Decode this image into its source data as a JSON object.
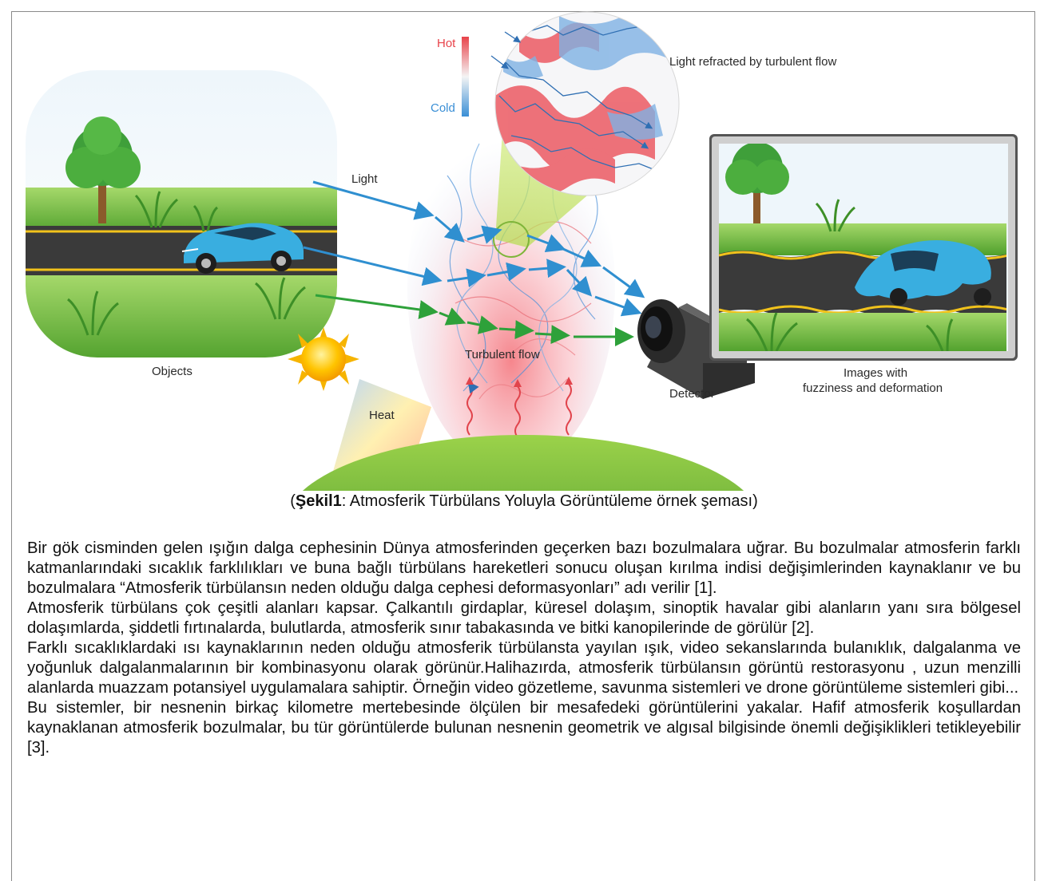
{
  "figure": {
    "labels": {
      "hot": "Hot",
      "cold": "Cold",
      "light_refracted": "Light refracted by turbulent flow",
      "light": "Light",
      "objects": "Objects",
      "turbulent_flow": "Turbulent flow",
      "heat": "Heat",
      "detector": "Detector",
      "images_line1": "Images with",
      "images_line2": "fuzziness and deformation"
    },
    "colors": {
      "hot": "#e8434a",
      "cold": "#3a8fd6",
      "light_blue_arrow": "#2f8fd0",
      "light_green_arrow": "#2ea13a",
      "car": "#39aee0",
      "grass": "#5cae2e",
      "sun": "#f6b400"
    },
    "icons": [
      "tree-icon",
      "car-icon",
      "sun-icon",
      "camera-icon",
      "monitor-icon"
    ]
  },
  "caption": {
    "bold": "Şekil1",
    "rest": ": Atmosferik Türbülans Yoluyla Görüntüleme örnek şeması)",
    "open": "("
  },
  "paragraphs": [
    "Bir gök cisminden gelen ışığın dalga cephesinin Dünya atmosferinden geçerken bazı bozulmalara uğrar. Bu bozulmalar atmosferin farklı katmanlarındaki sıcaklık farklılıkları ve buna bağlı türbülans hareketleri sonucu oluşan kırılma indisi değişimlerinden kaynaklanır ve bu bozulmalara “Atmosferik türbülansın neden olduğu dalga cephesi deformasyonları” adı verilir [1].",
    "Atmosferik türbülans çok çeşitli alanları kapsar. Çalkantılı girdaplar, küresel dolaşım, sinoptik havalar gibi alanların yanı sıra bölgesel dolaşımlarda, şiddetli fırtınalarda, bulutlarda, atmosferik sınır tabakasında ve bitki kanopilerinde de görülür [2].",
    "Farklı sıcaklıklardaki ısı kaynaklarının neden olduğu atmosferik türbülansta yayılan ışık, video sekanslarında bulanıklık, dalgalanma ve yoğunluk dalgalanmalarının bir kombinasyonu olarak görünür.Halihazırda, atmosferik türbülansın görüntü restorasyonu , uzun menzilli alanlarda muazzam potansiyel uygulamalara sahiptir. Örneğin video gözetleme, savunma sistemleri ve drone görüntüleme sistemleri gibi...",
    "Bu sistemler, bir nesnenin birkaç kilometre mertebesinde ölçülen bir mesafedeki görüntülerini yakalar. Hafif atmosferik koşullardan kaynaklanan atmosferik bozulmalar, bu tür görüntülerde bulunan nesnenin geometrik ve algısal bilgisinde önemli değişiklikleri tetikleyebilir [3]."
  ]
}
